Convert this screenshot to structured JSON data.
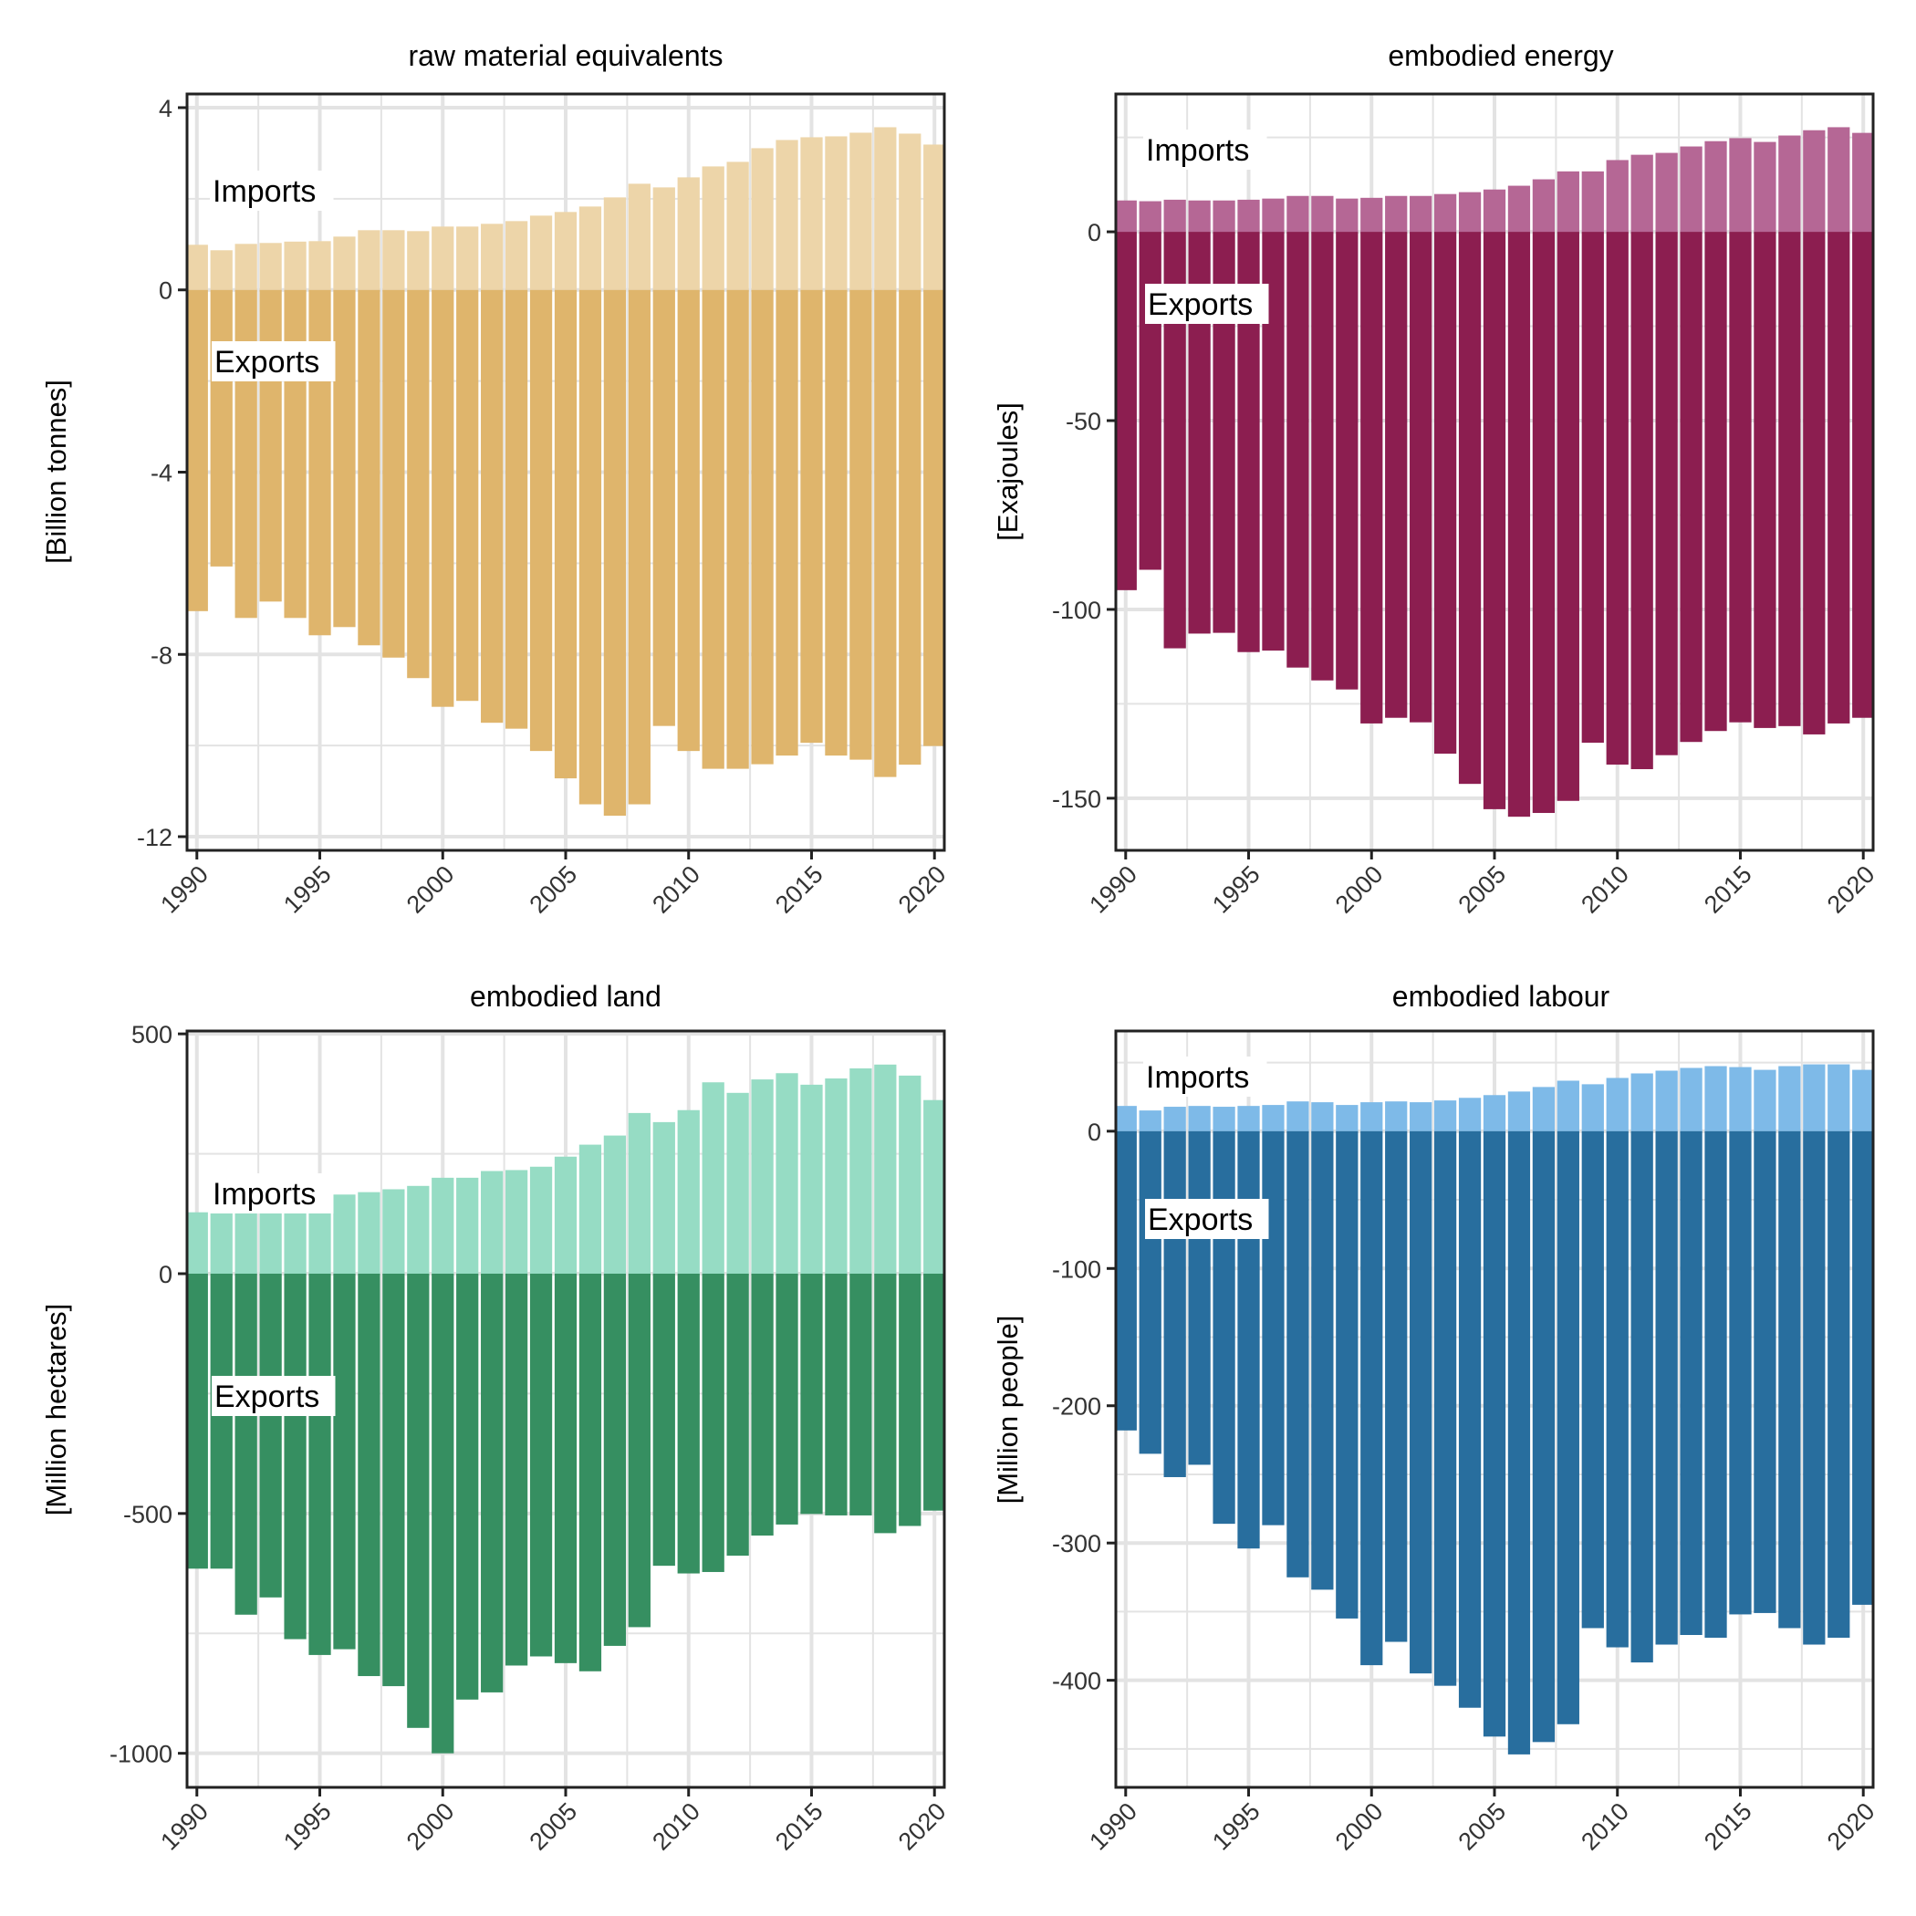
{
  "figure": {
    "layout": "2x2 facet grid",
    "x_axis": {
      "ticks": [
        "1990",
        "1995",
        "2000",
        "2005",
        "2010",
        "2015",
        "2020"
      ],
      "tick_rotation_deg": 45
    }
  },
  "chart_data": [
    {
      "type": "bar",
      "title": "raw material equivalents",
      "xlabel": "",
      "ylabel": "[Billion tonnes]",
      "ylim": [
        -12.3,
        4.3
      ],
      "yticks": [
        4,
        0,
        -4,
        -8,
        -12
      ],
      "xlim": [
        1989.6,
        2020.4
      ],
      "grid": true,
      "annotations": [
        "Imports",
        "Exports"
      ],
      "colors": {
        "imports": "#EDD5A9",
        "exports": "#DFB56C"
      },
      "x": [
        1990,
        1991,
        1992,
        1993,
        1994,
        1995,
        1996,
        1997,
        1998,
        1999,
        2000,
        2001,
        2002,
        2003,
        2004,
        2005,
        2006,
        2007,
        2008,
        2009,
        2010,
        2011,
        2012,
        2013,
        2014,
        2015,
        2016,
        2017,
        2018,
        2019,
        2020
      ],
      "series": [
        {
          "name": "Imports",
          "values": [
            0.99,
            0.87,
            1.01,
            1.03,
            1.06,
            1.07,
            1.17,
            1.31,
            1.31,
            1.29,
            1.39,
            1.39,
            1.45,
            1.51,
            1.63,
            1.71,
            1.83,
            2.03,
            2.33,
            2.25,
            2.47,
            2.71,
            2.81,
            3.11,
            3.29,
            3.35,
            3.37,
            3.45,
            3.57,
            3.43,
            3.19
          ]
        },
        {
          "name": "Exports",
          "values": [
            -7.05,
            -6.07,
            -7.2,
            -6.84,
            -7.2,
            -7.58,
            -7.4,
            -7.8,
            -8.07,
            -8.52,
            -9.15,
            -9.02,
            -9.5,
            -9.63,
            -10.12,
            -10.72,
            -11.29,
            -11.54,
            -11.29,
            -9.57,
            -10.12,
            -10.51,
            -10.51,
            -10.41,
            -10.22,
            -9.94,
            -10.22,
            -10.31,
            -10.69,
            -10.42,
            -10.01
          ]
        }
      ]
    },
    {
      "type": "bar",
      "title": "embodied energy",
      "xlabel": "",
      "ylabel": "[Exajoules]",
      "ylim": [
        -163.8,
        36.5
      ],
      "yticks": [
        0,
        -50,
        -100,
        -150
      ],
      "xlim": [
        1989.6,
        2020.4
      ],
      "grid": true,
      "annotations": [
        "Imports",
        "Exports"
      ],
      "colors": {
        "imports": "#B56795",
        "exports": "#8C1E50"
      },
      "x": [
        1990,
        1991,
        1992,
        1993,
        1994,
        1995,
        1996,
        1997,
        1998,
        1999,
        2000,
        2001,
        2002,
        2003,
        2004,
        2005,
        2006,
        2007,
        2008,
        2009,
        2010,
        2011,
        2012,
        2013,
        2014,
        2015,
        2016,
        2017,
        2018,
        2019,
        2020
      ],
      "series": [
        {
          "name": "Imports",
          "values": [
            8.3,
            8.1,
            8.5,
            8.3,
            8.3,
            8.5,
            8.8,
            9.5,
            9.5,
            8.8,
            9.0,
            9.5,
            9.5,
            10.0,
            10.5,
            11.2,
            12.2,
            13.9,
            16.0,
            16.0,
            19.0,
            20.4,
            20.9,
            22.6,
            24.0,
            24.8,
            23.8,
            25.5,
            26.9,
            27.7,
            26.2
          ]
        },
        {
          "name": "Exports",
          "values": [
            -94.9,
            -89.5,
            -110.3,
            -106.4,
            -106.2,
            -111.3,
            -110.9,
            -115.4,
            -118.8,
            -121.2,
            -130.2,
            -128.7,
            -129.9,
            -138.2,
            -146.2,
            -152.9,
            -154.9,
            -153.9,
            -150.7,
            -135.3,
            -141.1,
            -142.3,
            -138.6,
            -135.1,
            -132.2,
            -129.9,
            -131.4,
            -130.9,
            -133.1,
            -130.2,
            -128.7
          ]
        }
      ]
    },
    {
      "type": "bar",
      "title": "embodied land",
      "xlabel": "",
      "ylabel": "[Million hectares]",
      "ylim": [
        -1071,
        506
      ],
      "yticks": [
        500,
        0,
        -500,
        -1000
      ],
      "xlim": [
        1989.6,
        2020.4
      ],
      "grid": true,
      "annotations": [
        "Imports",
        "Exports"
      ],
      "colors": {
        "imports": "#96DCC4",
        "exports": "#368F61"
      },
      "x": [
        1990,
        1991,
        1992,
        1993,
        1994,
        1995,
        1996,
        1997,
        1998,
        1999,
        2000,
        2001,
        2002,
        2003,
        2004,
        2005,
        2006,
        2007,
        2008,
        2009,
        2010,
        2011,
        2012,
        2013,
        2014,
        2015,
        2016,
        2017,
        2018,
        2019,
        2020
      ],
      "series": [
        {
          "name": "Imports",
          "values": [
            128,
            126,
            138,
            149,
            149,
            155,
            165,
            170,
            176,
            183,
            200,
            200,
            214,
            216,
            223,
            244,
            269,
            288,
            335,
            316,
            341,
            399,
            377,
            405,
            418,
            394,
            407,
            428,
            436,
            413,
            362
          ]
        },
        {
          "name": "Exports",
          "values": [
            -615,
            -615,
            -711,
            -675,
            -762,
            -795,
            -783,
            -839,
            -860,
            -947,
            -1000,
            -888,
            -873,
            -817,
            -798,
            -812,
            -829,
            -776,
            -737,
            -609,
            -625,
            -622,
            -588,
            -546,
            -523,
            -501,
            -504,
            -504,
            -541,
            -526,
            -494
          ]
        }
      ]
    },
    {
      "type": "bar",
      "title": "embodied labour",
      "xlabel": "",
      "ylabel": "[Million people]",
      "ylim": [
        -478,
        73
      ],
      "yticks": [
        0,
        -100,
        -200,
        -300,
        -400
      ],
      "xlim": [
        1989.6,
        2020.4
      ],
      "grid": true,
      "annotations": [
        "Imports",
        "Exports"
      ],
      "colors": {
        "imports": "#7EBAE8",
        "exports": "#286E9E"
      },
      "x": [
        1990,
        1991,
        1992,
        1993,
        1994,
        1995,
        1996,
        1997,
        1998,
        1999,
        2000,
        2001,
        2002,
        2003,
        2004,
        2005,
        2006,
        2007,
        2008,
        2009,
        2010,
        2011,
        2012,
        2013,
        2014,
        2015,
        2016,
        2017,
        2018,
        2019,
        2020
      ],
      "series": [
        {
          "name": "Imports",
          "values": [
            18.4,
            15.1,
            17.8,
            18.4,
            17.8,
            18.4,
            19.1,
            21.7,
            21.1,
            19.1,
            21.1,
            21.7,
            21.1,
            22.4,
            24.3,
            26.3,
            28.9,
            32.2,
            36.8,
            34.2,
            38.8,
            42.1,
            44.1,
            46.1,
            47.4,
            46.7,
            44.7,
            47.4,
            48.7,
            48.7,
            44.7
          ]
        },
        {
          "name": "Exports",
          "values": [
            -218,
            -235,
            -252,
            -243,
            -286,
            -304,
            -287,
            -325,
            -334,
            -355,
            -389,
            -372,
            -395,
            -404,
            -420,
            -441,
            -454,
            -445,
            -432,
            -362,
            -376,
            -387,
            -374,
            -367,
            -369,
            -352,
            -351,
            -362,
            -374,
            -369,
            -345
          ]
        }
      ]
    }
  ]
}
